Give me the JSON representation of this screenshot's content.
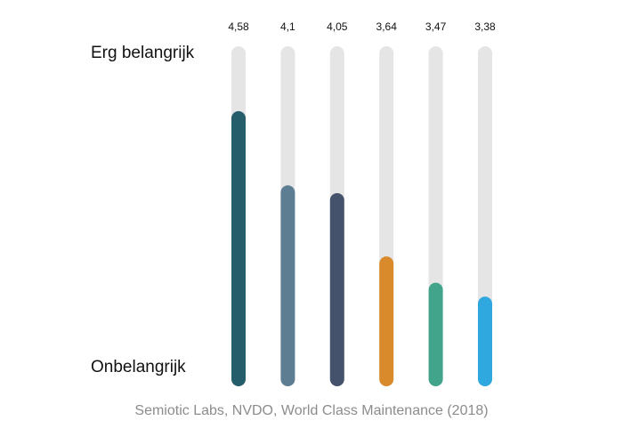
{
  "chart_data": {
    "type": "bar",
    "categories": [
      "",
      "",
      "",
      "",
      "",
      ""
    ],
    "values": [
      4.58,
      4.1,
      4.05,
      3.64,
      3.47,
      3.38
    ],
    "value_labels": [
      "4,58",
      "4,1",
      "4,05",
      "3,64",
      "3,47",
      "3,38"
    ],
    "colors": [
      "#265d6b",
      "#5c7d92",
      "#44536b",
      "#d98a2b",
      "#42a48a",
      "#2ea8df"
    ],
    "track_color": "#e5e5e5",
    "ylim": [
      2.8,
      5.0
    ],
    "ytop_label": "Erg belangrijk",
    "ybottom_label": "Onbelangrijk",
    "legend": "none",
    "grid": false
  },
  "source": "Semiotic Labs, NVDO, World Class Maintenance (2018)"
}
